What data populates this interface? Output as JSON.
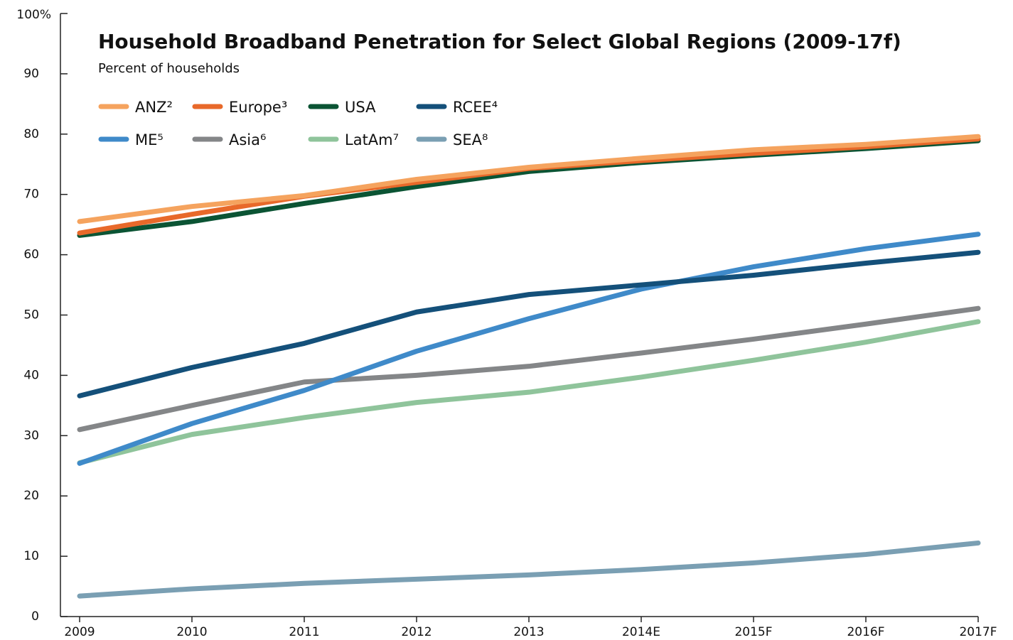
{
  "chart_data": {
    "type": "line",
    "title": "Household Broadband Penetration for Select Global Regions (2009-17f)",
    "subtitle": "Percent of households",
    "categories": [
      "2009",
      "2010",
      "2011",
      "2012",
      "2013",
      "2014E",
      "2015F",
      "2016F",
      "2017F"
    ],
    "ylim": [
      0,
      100
    ],
    "yticks": [
      0,
      10,
      20,
      30,
      40,
      50,
      60,
      70,
      80,
      90,
      {
        "value": 100,
        "label": "100%"
      }
    ],
    "legend": "top-left",
    "series": [
      {
        "name": "ANZ²",
        "color": "#f5a35e",
        "values": [
          65.5,
          68,
          69.8,
          72.5,
          74.5,
          76,
          77.4,
          78.3,
          79.6
        ]
      },
      {
        "name": "Europe³",
        "color": "#e8692a",
        "values": [
          63.6,
          66.7,
          69.7,
          72,
          74.3,
          75.6,
          76.8,
          77.9,
          79.2
        ]
      },
      {
        "name": "USA",
        "color": "#0b5434",
        "values": [
          63.2,
          65.5,
          68.5,
          71.3,
          73.8,
          75.3,
          76.5,
          77.6,
          78.9
        ]
      },
      {
        "name": "RCEE⁴",
        "color": "#14507a",
        "values": [
          36.6,
          41.3,
          45.3,
          50.5,
          53.4,
          55,
          56.6,
          58.6,
          60.4
        ]
      },
      {
        "name": "ME⁵",
        "color": "#3f8ac9",
        "values": [
          25.4,
          32,
          37.5,
          44,
          49.4,
          54.3,
          58,
          61,
          63.4
        ]
      },
      {
        "name": "Asia⁶",
        "color": "#848688",
        "values": [
          31,
          35,
          38.9,
          40,
          41.5,
          43.7,
          46,
          48.5,
          51.1
        ]
      },
      {
        "name": "LatAm⁷",
        "color": "#8fc49b",
        "values": [
          25.5,
          30.2,
          33,
          35.5,
          37.2,
          39.7,
          42.5,
          45.5,
          48.9
        ]
      },
      {
        "name": "SEA⁸",
        "color": "#7a9fb3",
        "values": [
          3.4,
          4.6,
          5.5,
          6.2,
          6.9,
          7.8,
          8.9,
          10.3,
          12.2
        ]
      }
    ]
  }
}
